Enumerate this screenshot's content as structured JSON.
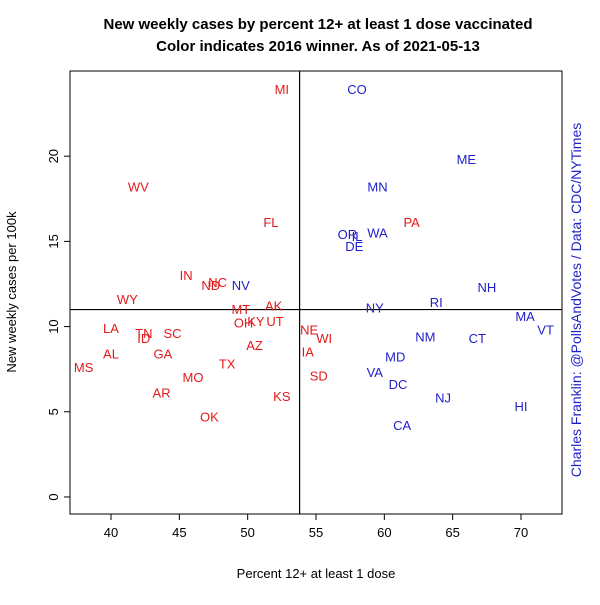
{
  "chart_data": {
    "type": "scatter",
    "title": "New weekly cases by percent 12+ at least 1 dose vaccinated",
    "subtitle": "Color indicates 2016 winner. As of 2021-05-13",
    "xlabel": "Percent 12+ at least 1 dose",
    "ylabel": "New weekly cases per 100k",
    "credit": "Charles Franklin: @PollsAndVotes / Data: CDC/NYTimes",
    "xlim": [
      37,
      73
    ],
    "ylim": [
      -1,
      25
    ],
    "x_ticks": [
      40,
      45,
      50,
      55,
      60,
      65,
      70
    ],
    "y_ticks": [
      0,
      5,
      10,
      15,
      20
    ],
    "ref_lines": {
      "x": 53.8,
      "y": 11.0
    },
    "colors": {
      "R": "#e31a1c",
      "D": "#1f1fc8",
      "credit": "#1f1fc8"
    },
    "grid": false,
    "points": [
      {
        "label": "MI",
        "x": 52.5,
        "y": 23.9,
        "winner": "R"
      },
      {
        "label": "CO",
        "x": 58.0,
        "y": 23.9,
        "winner": "D"
      },
      {
        "label": "ME",
        "x": 66.0,
        "y": 19.8,
        "winner": "D"
      },
      {
        "label": "MN",
        "x": 59.5,
        "y": 18.2,
        "winner": "D"
      },
      {
        "label": "WV",
        "x": 42.0,
        "y": 18.2,
        "winner": "R"
      },
      {
        "label": "FL",
        "x": 51.7,
        "y": 16.1,
        "winner": "R"
      },
      {
        "label": "PA",
        "x": 62.0,
        "y": 16.1,
        "winner": "R"
      },
      {
        "label": "OR",
        "x": 57.3,
        "y": 15.4,
        "winner": "D"
      },
      {
        "label": "IL",
        "x": 58.0,
        "y": 15.3,
        "winner": "D"
      },
      {
        "label": "WA",
        "x": 59.5,
        "y": 15.5,
        "winner": "D"
      },
      {
        "label": "DE",
        "x": 57.8,
        "y": 14.7,
        "winner": "D"
      },
      {
        "label": "IN",
        "x": 45.5,
        "y": 13.0,
        "winner": "R"
      },
      {
        "label": "NC",
        "x": 47.8,
        "y": 12.6,
        "winner": "R"
      },
      {
        "label": "ND",
        "x": 47.3,
        "y": 12.4,
        "winner": "R"
      },
      {
        "label": "NV",
        "x": 49.5,
        "y": 12.4,
        "winner": "D"
      },
      {
        "label": "NH",
        "x": 67.5,
        "y": 12.3,
        "winner": "D"
      },
      {
        "label": "WY",
        "x": 41.2,
        "y": 11.6,
        "winner": "R"
      },
      {
        "label": "RI",
        "x": 63.8,
        "y": 11.4,
        "winner": "D"
      },
      {
        "label": "AK",
        "x": 51.9,
        "y": 11.2,
        "winner": "R"
      },
      {
        "label": "NY",
        "x": 59.3,
        "y": 11.1,
        "winner": "D"
      },
      {
        "label": "MT",
        "x": 49.5,
        "y": 11.0,
        "winner": "R"
      },
      {
        "label": "MA",
        "x": 70.3,
        "y": 10.6,
        "winner": "D"
      },
      {
        "label": "KY",
        "x": 50.6,
        "y": 10.3,
        "winner": "R"
      },
      {
        "label": "UT",
        "x": 52.0,
        "y": 10.3,
        "winner": "R"
      },
      {
        "label": "OH",
        "x": 49.7,
        "y": 10.2,
        "winner": "R"
      },
      {
        "label": "VT",
        "x": 71.8,
        "y": 9.8,
        "winner": "D"
      },
      {
        "label": "LA",
        "x": 40.0,
        "y": 9.9,
        "winner": "R"
      },
      {
        "label": "NE",
        "x": 54.5,
        "y": 9.8,
        "winner": "R"
      },
      {
        "label": "TN",
        "x": 42.4,
        "y": 9.6,
        "winner": "R"
      },
      {
        "label": "SC",
        "x": 44.5,
        "y": 9.6,
        "winner": "R"
      },
      {
        "label": "ID",
        "x": 42.4,
        "y": 9.3,
        "winner": "R"
      },
      {
        "label": "WI",
        "x": 55.6,
        "y": 9.3,
        "winner": "R"
      },
      {
        "label": "NM",
        "x": 63.0,
        "y": 9.4,
        "winner": "D"
      },
      {
        "label": "CT",
        "x": 66.8,
        "y": 9.3,
        "winner": "D"
      },
      {
        "label": "AZ",
        "x": 50.5,
        "y": 8.9,
        "winner": "R"
      },
      {
        "label": "GA",
        "x": 43.8,
        "y": 8.4,
        "winner": "R"
      },
      {
        "label": "AL",
        "x": 40.0,
        "y": 8.4,
        "winner": "R"
      },
      {
        "label": "IA",
        "x": 54.4,
        "y": 8.5,
        "winner": "R"
      },
      {
        "label": "MD",
        "x": 60.8,
        "y": 8.2,
        "winner": "D"
      },
      {
        "label": "MS",
        "x": 38.0,
        "y": 7.6,
        "winner": "R"
      },
      {
        "label": "TX",
        "x": 48.5,
        "y": 7.8,
        "winner": "R"
      },
      {
        "label": "VA",
        "x": 59.3,
        "y": 7.3,
        "winner": "D"
      },
      {
        "label": "SD",
        "x": 55.2,
        "y": 7.1,
        "winner": "R"
      },
      {
        "label": "MO",
        "x": 46.0,
        "y": 7.0,
        "winner": "R"
      },
      {
        "label": "DC",
        "x": 61.0,
        "y": 6.6,
        "winner": "D"
      },
      {
        "label": "AR",
        "x": 43.7,
        "y": 6.1,
        "winner": "R"
      },
      {
        "label": "KS",
        "x": 52.5,
        "y": 5.9,
        "winner": "R"
      },
      {
        "label": "NJ",
        "x": 64.3,
        "y": 5.8,
        "winner": "D"
      },
      {
        "label": "HI",
        "x": 70.0,
        "y": 5.3,
        "winner": "D"
      },
      {
        "label": "OK",
        "x": 47.2,
        "y": 4.7,
        "winner": "R"
      },
      {
        "label": "CA",
        "x": 61.3,
        "y": 4.2,
        "winner": "D"
      }
    ]
  }
}
